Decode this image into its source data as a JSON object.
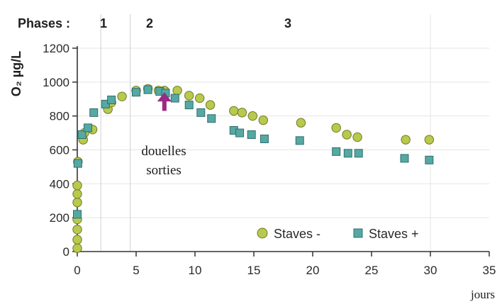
{
  "chart_data": {
    "type": "scatter",
    "phases": {
      "label": "Phases :",
      "items": [
        {
          "name": "1",
          "start": 0,
          "end": 2
        },
        {
          "name": "2",
          "start": 2,
          "end": 4.5
        },
        {
          "name": "3",
          "start": 4.5,
          "end": 35
        }
      ],
      "boundaries": [
        2,
        4.5
      ]
    },
    "ylabel": "O₂ µg/L",
    "xlabel": "jours",
    "xlim": [
      0,
      35
    ],
    "ylim": [
      0,
      1200
    ],
    "xticks": [
      0,
      5,
      10,
      15,
      20,
      25,
      30,
      35
    ],
    "yticks": [
      0,
      200,
      400,
      600,
      800,
      1000,
      1200
    ],
    "grid": true,
    "legend_position": "bottom-right",
    "annotation": {
      "lines": [
        "douelles",
        "sorties"
      ],
      "arrow_x": 7.4,
      "arrow_top": 940,
      "arrow_bottom": 830,
      "color": "#9a2a86"
    },
    "series": [
      {
        "name": "Staves -",
        "marker": "circle",
        "color": "#b9c94b",
        "points": [
          [
            0,
            20
          ],
          [
            0,
            70
          ],
          [
            0,
            130
          ],
          [
            0,
            190
          ],
          [
            0,
            290
          ],
          [
            0,
            340
          ],
          [
            0,
            390
          ],
          [
            0.05,
            530
          ],
          [
            0.5,
            660
          ],
          [
            0.6,
            700
          ],
          [
            1.3,
            720
          ],
          [
            2.6,
            840
          ],
          [
            2.9,
            880
          ],
          [
            3.8,
            915
          ],
          [
            5.0,
            950
          ],
          [
            6.0,
            960
          ],
          [
            6.9,
            950
          ],
          [
            7.4,
            950
          ],
          [
            8.5,
            950
          ],
          [
            9.5,
            920
          ],
          [
            10.4,
            905
          ],
          [
            11.3,
            865
          ],
          [
            13.3,
            830
          ],
          [
            14.0,
            820
          ],
          [
            14.9,
            800
          ],
          [
            15.8,
            775
          ],
          [
            19.0,
            760
          ],
          [
            22.0,
            730
          ],
          [
            22.9,
            690
          ],
          [
            23.8,
            675
          ],
          [
            27.9,
            660
          ],
          [
            29.9,
            660
          ]
        ]
      },
      {
        "name": "Staves +",
        "marker": "square",
        "color": "#55a8a3",
        "points": [
          [
            0,
            220
          ],
          [
            0.05,
            520
          ],
          [
            0.4,
            690
          ],
          [
            0.9,
            730
          ],
          [
            1.4,
            820
          ],
          [
            2.4,
            870
          ],
          [
            2.9,
            895
          ],
          [
            5.0,
            940
          ],
          [
            6.0,
            955
          ],
          [
            7.0,
            945
          ],
          [
            7.5,
            935
          ],
          [
            8.3,
            905
          ],
          [
            9.5,
            865
          ],
          [
            10.5,
            820
          ],
          [
            11.4,
            785
          ],
          [
            13.3,
            715
          ],
          [
            13.8,
            700
          ],
          [
            14.8,
            690
          ],
          [
            15.9,
            665
          ],
          [
            18.9,
            655
          ],
          [
            22.0,
            590
          ],
          [
            23.0,
            580
          ],
          [
            23.9,
            580
          ],
          [
            27.8,
            550
          ],
          [
            29.9,
            540
          ]
        ]
      }
    ]
  }
}
